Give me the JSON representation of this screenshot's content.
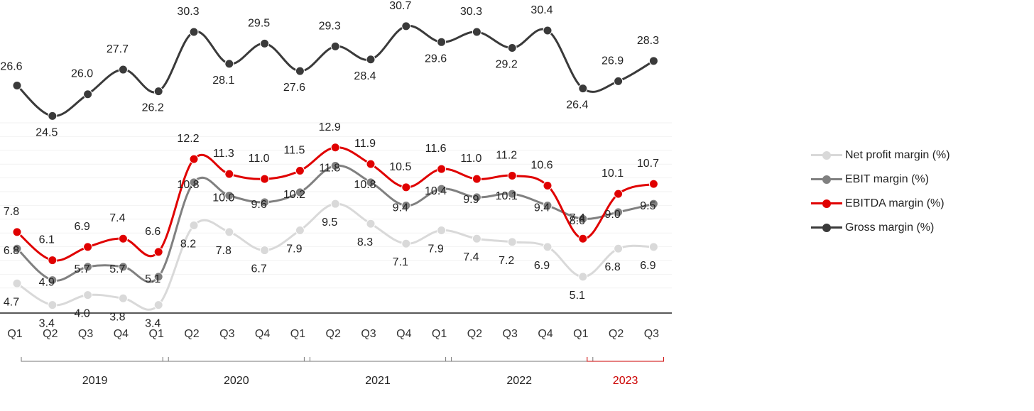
{
  "chart_data": {
    "type": "line",
    "categories": [
      "Q1",
      "Q2",
      "Q3",
      "Q4",
      "Q1",
      "Q2",
      "Q3",
      "Q4",
      "Q1",
      "Q2",
      "Q3",
      "Q4",
      "Q1",
      "Q2",
      "Q3",
      "Q4",
      "Q1",
      "Q2",
      "Q3"
    ],
    "years": [
      {
        "label": "2019",
        "start": 0,
        "end": 4,
        "color": "#222222"
      },
      {
        "label": "2020",
        "start": 4,
        "end": 8,
        "color": "#222222"
      },
      {
        "label": "2021",
        "start": 8,
        "end": 12,
        "color": "#222222"
      },
      {
        "label": "2022",
        "start": 12,
        "end": 16,
        "color": "#222222"
      },
      {
        "label": "2023",
        "start": 16,
        "end": 18,
        "color": "#cc0000"
      }
    ],
    "series": [
      {
        "name": "Net profit margin (%)",
        "color": "#d9d9d9",
        "values": [
          4.7,
          3.4,
          4.0,
          3.8,
          3.4,
          8.2,
          7.8,
          6.7,
          7.9,
          9.5,
          8.3,
          7.1,
          7.9,
          7.4,
          7.2,
          6.9,
          5.1,
          6.8,
          6.9
        ]
      },
      {
        "name": "EBIT margin (%)",
        "color": "#808080",
        "values": [
          6.8,
          4.9,
          5.7,
          5.7,
          5.1,
          10.8,
          10.0,
          9.6,
          10.2,
          11.8,
          10.8,
          9.4,
          10.4,
          9.9,
          10.1,
          9.4,
          8.6,
          9.0,
          9.5
        ]
      },
      {
        "name": "EBITDA margin (%)",
        "color": "#e00000",
        "values": [
          7.8,
          6.1,
          6.9,
          7.4,
          6.6,
          12.2,
          11.3,
          11.0,
          11.5,
          12.9,
          11.9,
          10.5,
          11.6,
          11.0,
          11.2,
          10.6,
          7.4,
          10.1,
          10.7
        ]
      },
      {
        "name": "Gross margin (%)",
        "color": "#3a3a3a",
        "values": [
          26.6,
          24.5,
          26.0,
          27.7,
          26.2,
          30.3,
          28.1,
          29.5,
          27.6,
          29.3,
          28.4,
          30.7,
          29.6,
          30.3,
          29.2,
          30.4,
          26.4,
          26.9,
          28.3
        ]
      }
    ],
    "legend_position": "right",
    "grid": false
  }
}
